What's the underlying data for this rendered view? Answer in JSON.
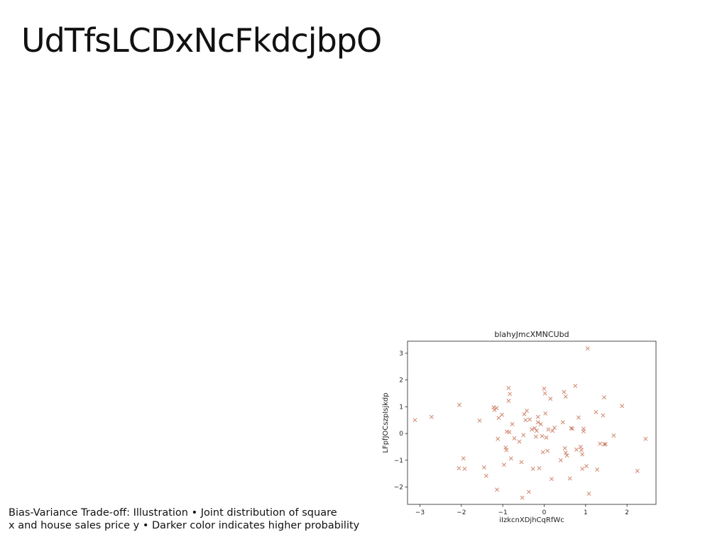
{
  "slide": {
    "title": "UdTfsLCDxNcFkdcjbpO",
    "caption_line1": "Bias-Variance Trade-off: Illustration • Joint distribution of square",
    "caption_line2": "x and house sales price y • Darker color indicates higher probability"
  },
  "chart_data": {
    "type": "scatter",
    "title": "blahyJmcXMNCUbd",
    "xlabel": "iIzkcnXDjhCqRfWc",
    "ylabel": "LFpfJOCszpIsjkdp",
    "xlim": [
      -3.3,
      2.7
    ],
    "ylim": [
      -2.65,
      3.45
    ],
    "xticks": [
      -3,
      -2,
      -1,
      0,
      1,
      2
    ],
    "yticks": [
      -2,
      -1,
      0,
      1,
      2,
      3
    ],
    "marker": "x",
    "color": "#c0603f",
    "grid": false,
    "points": [
      [
        -3.12,
        0.5
      ],
      [
        -2.72,
        0.62
      ],
      [
        -2.05,
        1.07
      ],
      [
        -2.06,
        -1.3
      ],
      [
        -1.95,
        -0.93
      ],
      [
        -1.92,
        -1.32
      ],
      [
        -1.56,
        0.48
      ],
      [
        -1.45,
        -1.27
      ],
      [
        -1.4,
        -1.58
      ],
      [
        -1.22,
        0.98
      ],
      [
        -1.2,
        0.88
      ],
      [
        -1.15,
        0.95
      ],
      [
        -1.14,
        -2.1
      ],
      [
        -1.12,
        -0.2
      ],
      [
        -1.1,
        0.58
      ],
      [
        -1.02,
        0.7
      ],
      [
        -0.97,
        -1.17
      ],
      [
        -0.93,
        -0.53
      ],
      [
        -0.91,
        -0.62
      ],
      [
        -0.9,
        0.07
      ],
      [
        -0.86,
        1.7
      ],
      [
        -0.86,
        1.22
      ],
      [
        -0.84,
        0.05
      ],
      [
        -0.83,
        1.48
      ],
      [
        -0.8,
        -0.93
      ],
      [
        -0.77,
        0.35
      ],
      [
        -0.72,
        -0.18
      ],
      [
        -0.6,
        -0.3
      ],
      [
        -0.55,
        -1.07
      ],
      [
        -0.53,
        -2.4
      ],
      [
        -0.5,
        -0.06
      ],
      [
        -0.48,
        0.72
      ],
      [
        -0.45,
        0.5
      ],
      [
        -0.42,
        0.85
      ],
      [
        -0.37,
        -2.18
      ],
      [
        -0.35,
        0.52
      ],
      [
        -0.3,
        0.15
      ],
      [
        -0.27,
        -1.32
      ],
      [
        -0.23,
        0.2
      ],
      [
        -0.2,
        -0.12
      ],
      [
        -0.18,
        0.1
      ],
      [
        -0.15,
        0.42
      ],
      [
        -0.15,
        0.62
      ],
      [
        -0.12,
        -1.3
      ],
      [
        -0.08,
        0.35
      ],
      [
        -0.05,
        -0.1
      ],
      [
        -0.03,
        -0.7
      ],
      [
        0.0,
        1.68
      ],
      [
        0.02,
        1.5
      ],
      [
        0.03,
        0.75
      ],
      [
        0.05,
        -0.15
      ],
      [
        0.08,
        -0.65
      ],
      [
        0.1,
        0.15
      ],
      [
        0.15,
        1.3
      ],
      [
        0.18,
        -1.7
      ],
      [
        0.2,
        0.1
      ],
      [
        0.25,
        0.22
      ],
      [
        0.4,
        -1.0
      ],
      [
        0.45,
        0.42
      ],
      [
        0.48,
        1.55
      ],
      [
        0.5,
        -0.55
      ],
      [
        0.52,
        1.38
      ],
      [
        0.52,
        -0.72
      ],
      [
        0.55,
        -0.82
      ],
      [
        0.62,
        -1.68
      ],
      [
        0.65,
        0.2
      ],
      [
        0.68,
        0.18
      ],
      [
        0.75,
        1.78
      ],
      [
        0.78,
        -0.6
      ],
      [
        0.83,
        0.6
      ],
      [
        0.88,
        -0.5
      ],
      [
        0.9,
        -0.62
      ],
      [
        0.92,
        -0.78
      ],
      [
        0.92,
        -1.32
      ],
      [
        0.95,
        0.08
      ],
      [
        0.95,
        0.18
      ],
      [
        1.02,
        -1.22
      ],
      [
        1.05,
        3.18
      ],
      [
        1.08,
        -2.25
      ],
      [
        1.25,
        0.8
      ],
      [
        1.28,
        -1.35
      ],
      [
        1.35,
        -0.38
      ],
      [
        1.42,
        0.68
      ],
      [
        1.45,
        -0.4
      ],
      [
        1.45,
        1.35
      ],
      [
        1.48,
        -0.4
      ],
      [
        1.68,
        -0.08
      ],
      [
        1.88,
        1.03
      ],
      [
        2.25,
        -1.4
      ],
      [
        2.45,
        -0.2
      ]
    ]
  }
}
